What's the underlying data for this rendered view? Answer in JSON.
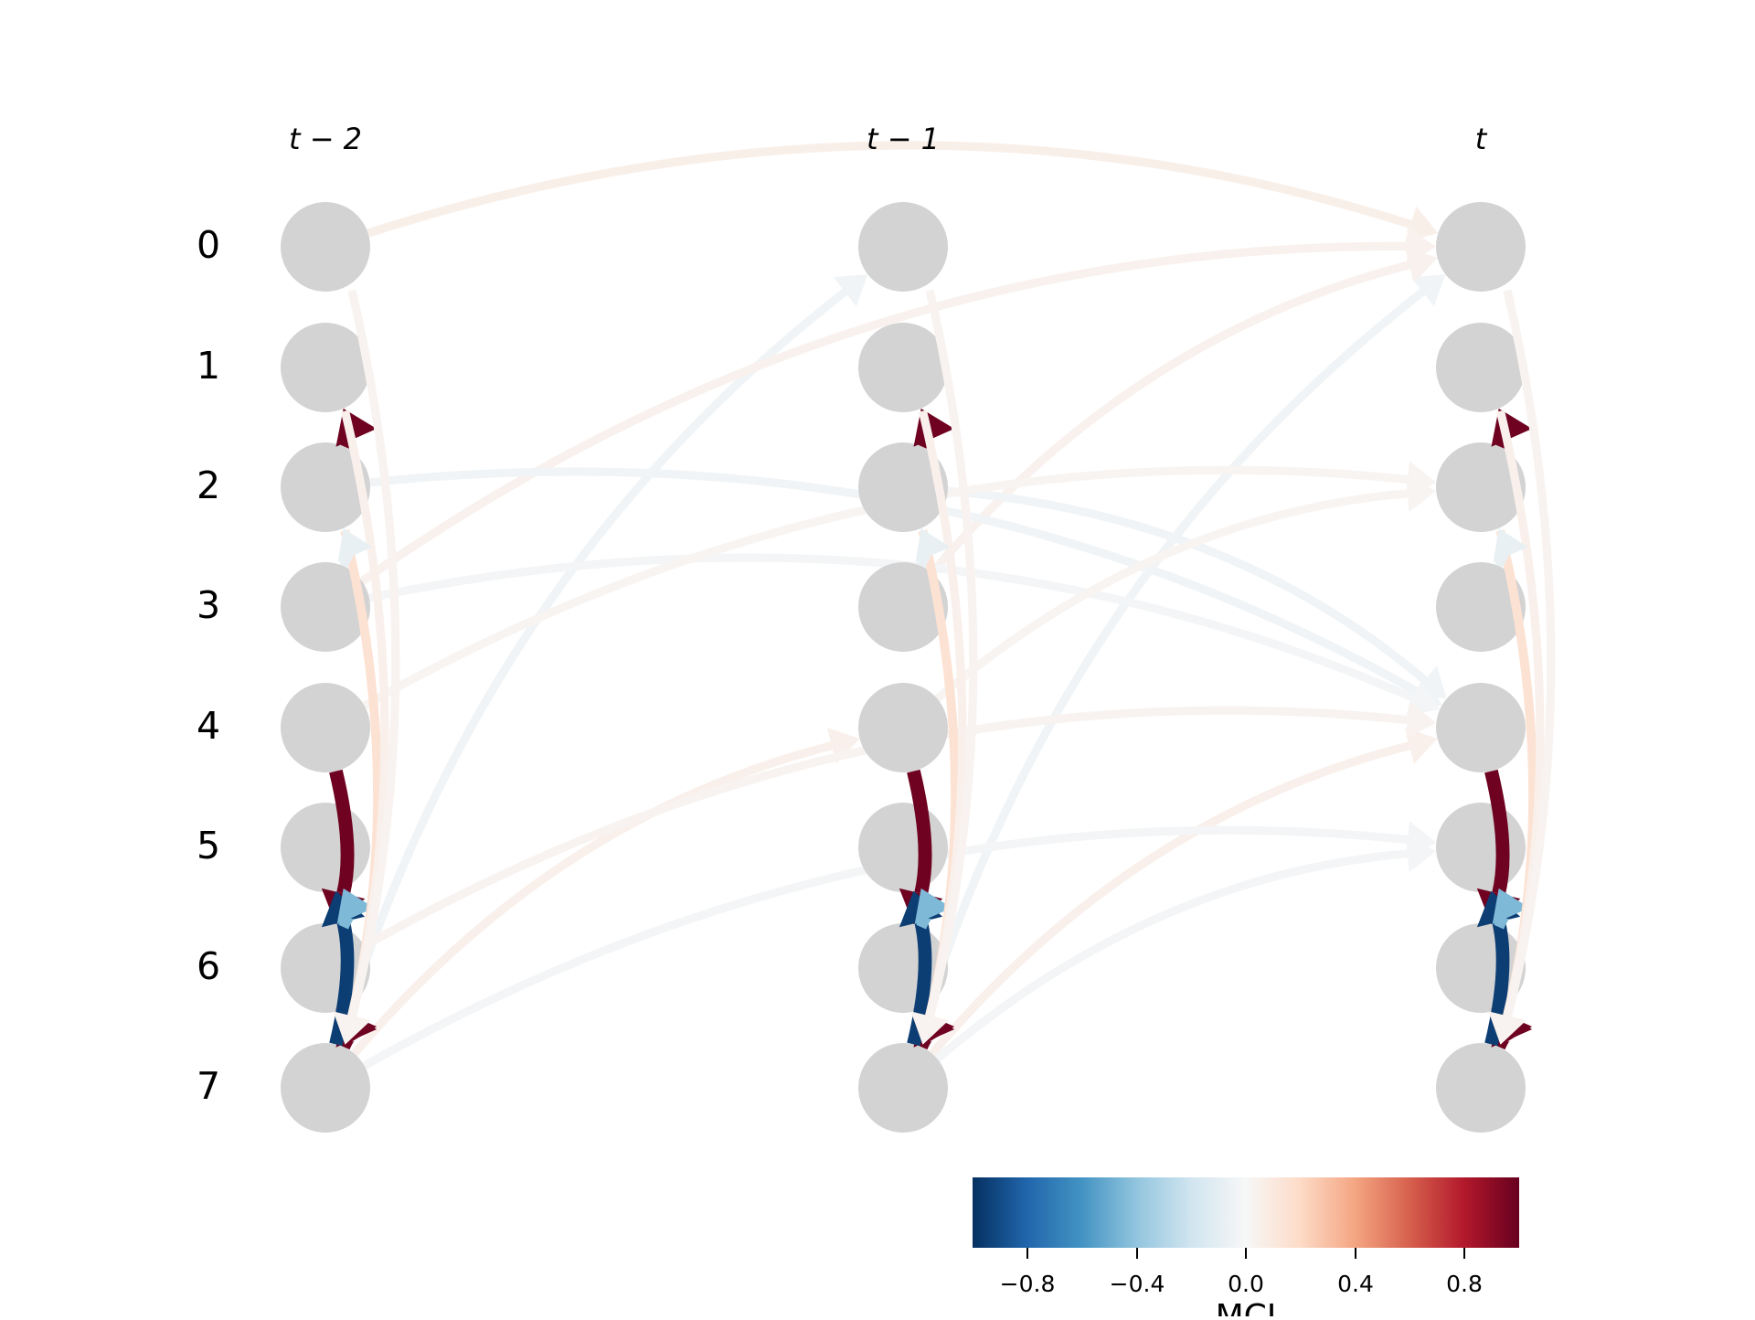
{
  "diagram": {
    "column_titles": [
      "t − 2",
      "t − 1",
      "t"
    ],
    "row_labels": [
      "0",
      "1",
      "2",
      "3",
      "4",
      "5",
      "6",
      "7"
    ],
    "node_color": "#d3d3d3",
    "colorbar": {
      "label": "MCI",
      "ticks": [
        "−0.8",
        "−0.4",
        "0.0",
        "0.4",
        "0.8"
      ],
      "tick_values": [
        -0.8,
        -0.4,
        0.0,
        0.4,
        0.8
      ],
      "range": [
        -1,
        1
      ],
      "colormap": [
        "#053061",
        "#2166ac",
        "#4393c3",
        "#92c5de",
        "#d1e5f0",
        "#f7f7f7",
        "#fddbc7",
        "#f4a582",
        "#d6604d",
        "#b2182b",
        "#67001f"
      ]
    },
    "intra_links": [
      {
        "from": 4,
        "to": 6,
        "value": 0.98
      },
      {
        "from": 6,
        "to": 7,
        "value": 0.98
      },
      {
        "from": 7,
        "to": 6,
        "value": 0.98
      },
      {
        "from": 7,
        "to": 5,
        "value": -0.95
      },
      {
        "from": 2,
        "to": 1,
        "value": 0.98
      },
      {
        "from": 6,
        "to": 5,
        "value": -0.45
      },
      {
        "from": 2,
        "to": 7,
        "value": 0.15
      },
      {
        "from": 1,
        "to": 7,
        "value": 0.05
      },
      {
        "from": 0,
        "to": 7,
        "value": 0.03
      },
      {
        "from": 3,
        "to": 2,
        "value": -0.08
      }
    ],
    "lagged_links": [
      {
        "from_time": 0,
        "from_var": 0,
        "to_time": 2,
        "to_var": 0,
        "value": 0.06
      },
      {
        "from_time": 0,
        "from_var": 7,
        "to_time": 1,
        "to_var": 0,
        "value": -0.03
      },
      {
        "from_time": 1,
        "from_var": 7,
        "to_time": 2,
        "to_var": 0,
        "value": -0.03
      },
      {
        "from_time": 0,
        "from_var": 3,
        "to_time": 2,
        "to_var": 0,
        "value": 0.04
      },
      {
        "from_time": 1,
        "from_var": 3,
        "to_time": 2,
        "to_var": 0,
        "value": 0.04
      },
      {
        "from_time": 0,
        "from_var": 2,
        "to_time": 2,
        "to_var": 4,
        "value": -0.03
      },
      {
        "from_time": 1,
        "from_var": 2,
        "to_time": 2,
        "to_var": 4,
        "value": -0.03
      },
      {
        "from_time": 0,
        "from_var": 3,
        "to_time": 2,
        "to_var": 4,
        "value": -0.02
      },
      {
        "from_time": 0,
        "from_var": 4,
        "to_time": 2,
        "to_var": 2,
        "value": 0.02
      },
      {
        "from_time": 1,
        "from_var": 4,
        "to_time": 2,
        "to_var": 2,
        "value": 0.02
      },
      {
        "from_time": 0,
        "from_var": 7,
        "to_time": 1,
        "to_var": 4,
        "value": 0.05
      },
      {
        "from_time": 1,
        "from_var": 7,
        "to_time": 2,
        "to_var": 4,
        "value": 0.05
      },
      {
        "from_time": 0,
        "from_var": 6,
        "to_time": 2,
        "to_var": 4,
        "value": 0.03
      },
      {
        "from_time": 0,
        "from_var": 7,
        "to_time": 2,
        "to_var": 5,
        "value": -0.02
      },
      {
        "from_time": 1,
        "from_var": 7,
        "to_time": 2,
        "to_var": 5,
        "value": -0.02
      }
    ]
  }
}
